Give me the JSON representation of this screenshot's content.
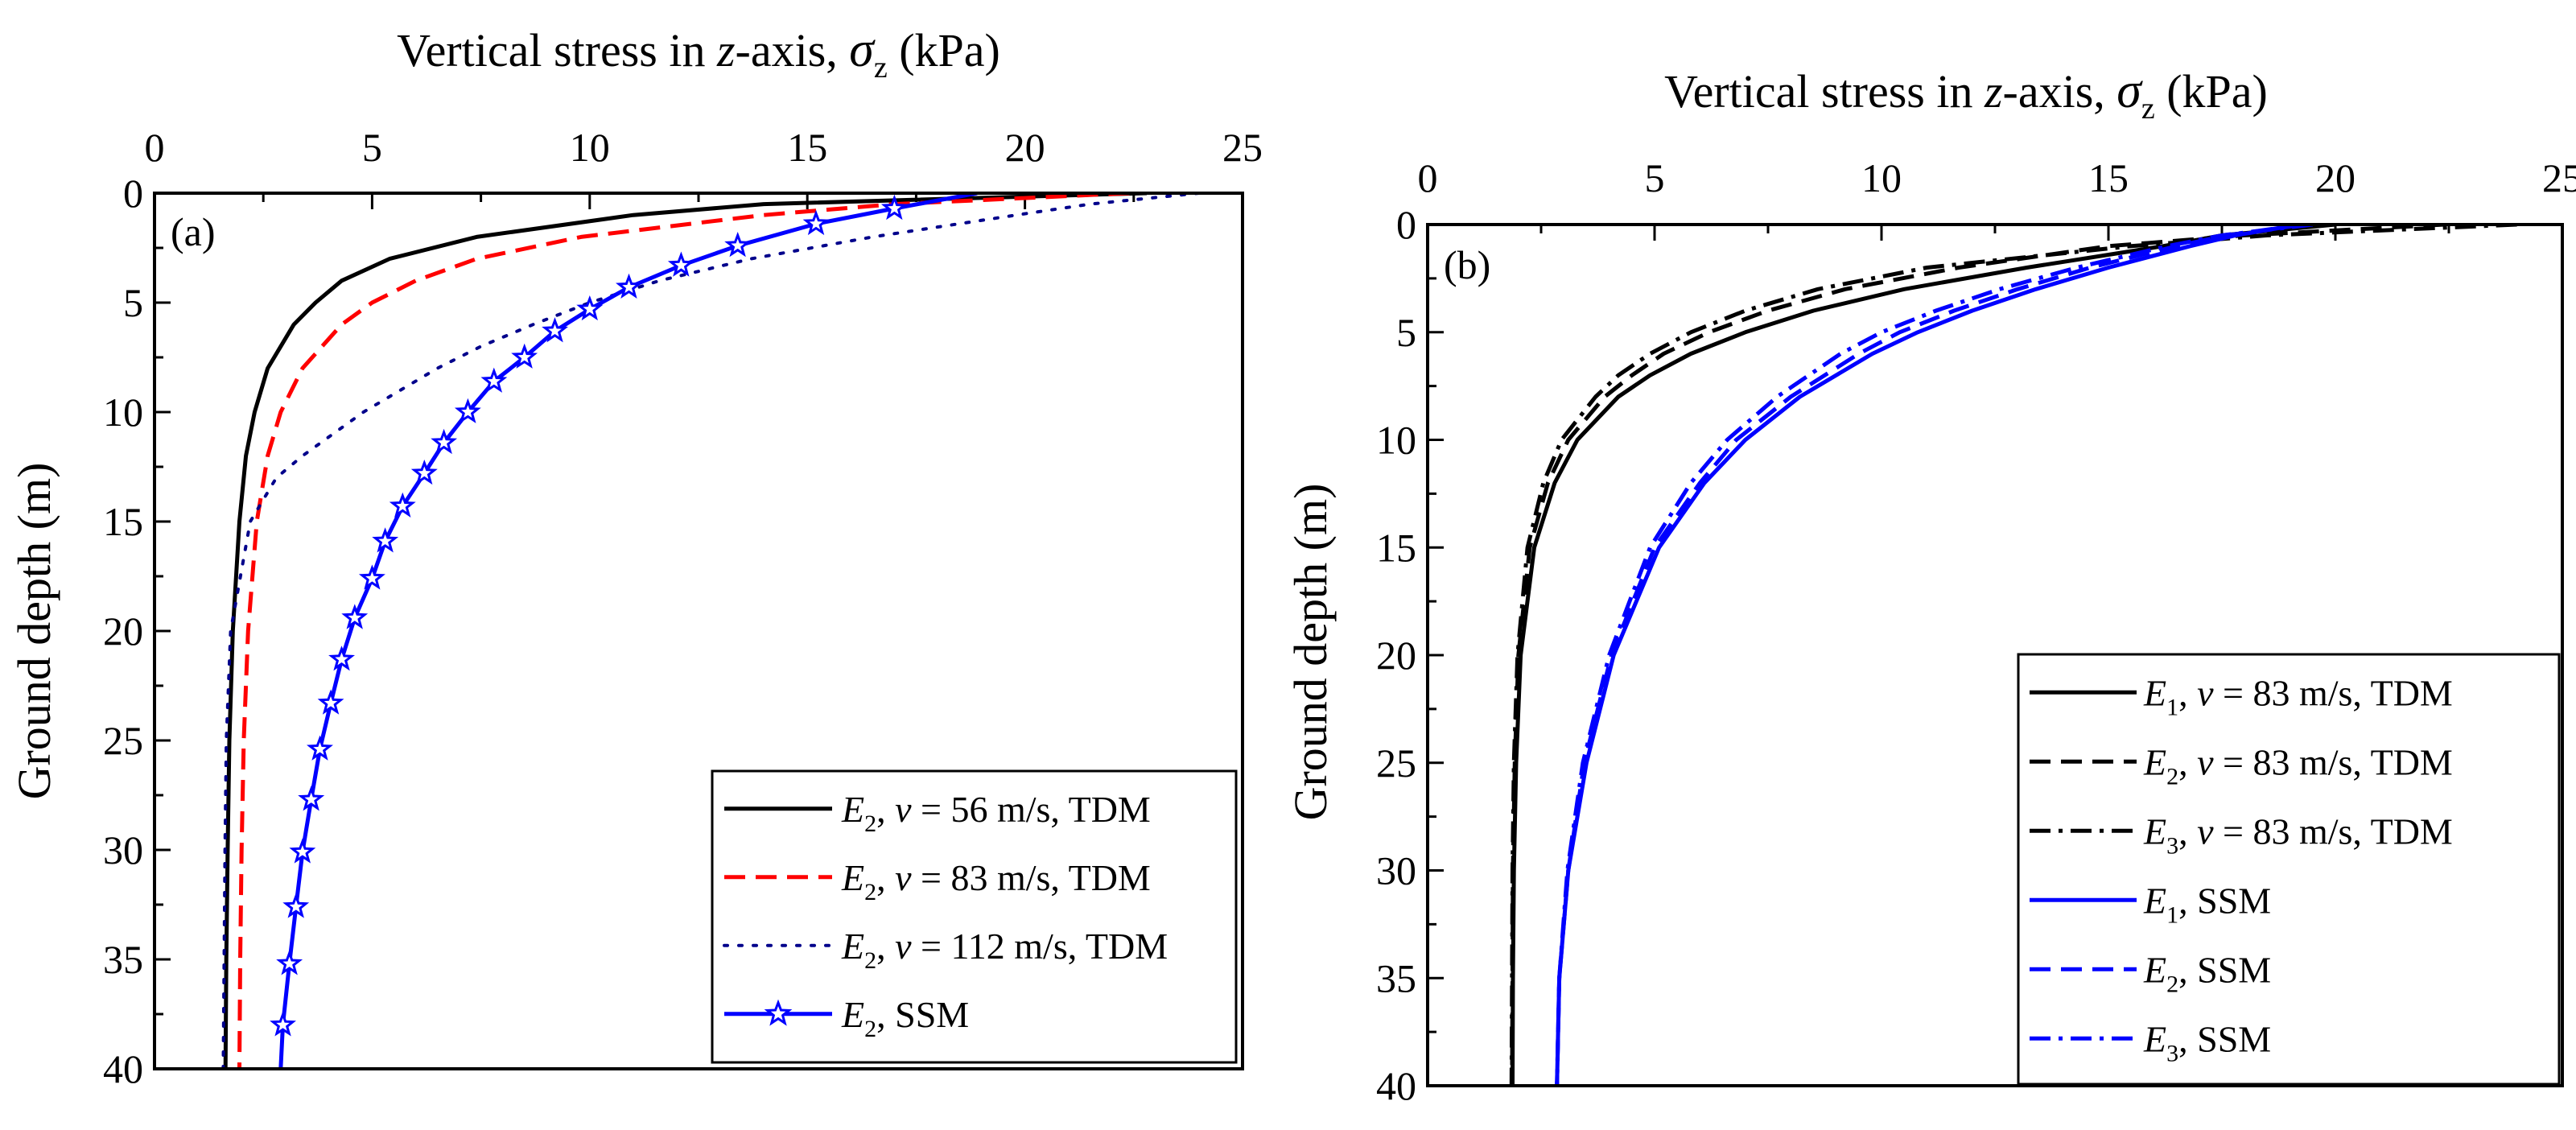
{
  "chart_data": [
    {
      "id": "a",
      "type": "line",
      "panel_label": "(a)",
      "title": {
        "prefix": "Vertical stress in ",
        "var": "z",
        "mid": "-axis, ",
        "sym": "σ",
        "sub": "z",
        "unit": " (kPa)"
      },
      "xlabel": "Vertical stress in z-axis, σz (kPa)",
      "ylabel": "Ground depth (m)",
      "xlim": [
        0,
        25
      ],
      "ylim": [
        0,
        40
      ],
      "xticks": [
        0,
        5,
        10,
        15,
        20,
        25
      ],
      "yticks": [
        0,
        5,
        10,
        15,
        20,
        25,
        30,
        35,
        40
      ],
      "xtick_labels": [
        "0",
        "5",
        "10",
        "15",
        "20",
        "25"
      ],
      "ytick_labels": [
        "0",
        "5",
        "10",
        "15",
        "20",
        "25",
        "30",
        "35",
        "40"
      ],
      "legend_position": "bottom-right",
      "series": [
        {
          "name": "E2, v = 56 m/s, TDM",
          "legend": {
            "E": "E",
            "sub": "2",
            "rest": ", ",
            "v": "v",
            "tail": " = 56 m/s, TDM"
          },
          "color": "#000000",
          "dash": "solid",
          "marker": "none",
          "depth": [
            0,
            0.5,
            1,
            2,
            3,
            4,
            5,
            6,
            8,
            10,
            12,
            15,
            20,
            25,
            30,
            35,
            40
          ],
          "stress": [
            22.8,
            14.0,
            11.0,
            7.4,
            5.4,
            4.3,
            3.7,
            3.2,
            2.6,
            2.3,
            2.1,
            1.95,
            1.8,
            1.72,
            1.68,
            1.65,
            1.63
          ]
        },
        {
          "name": "E2, v = 83 m/s, TDM",
          "legend": {
            "E": "E",
            "sub": "2",
            "rest": ", ",
            "v": "v",
            "tail": " = 83 m/s, TDM"
          },
          "color": "#ff0000",
          "dash": "dash",
          "marker": "none",
          "depth": [
            0,
            0.5,
            1,
            2,
            3,
            4,
            5,
            6,
            8,
            10,
            12,
            15,
            20,
            25,
            30,
            35,
            40
          ],
          "stress": [
            22.4,
            17.0,
            14.0,
            9.8,
            7.4,
            6.0,
            5.0,
            4.3,
            3.4,
            2.9,
            2.6,
            2.35,
            2.15,
            2.05,
            2.0,
            1.97,
            1.95
          ]
        },
        {
          "name": "E2, v = 112 m/s, TDM",
          "legend": {
            "E": "E",
            "sub": "2",
            "rest": ", ",
            "v": "v",
            "tail": " = 112 m/s, TDM"
          },
          "color": "#00008b",
          "dash": "dot",
          "marker": "none",
          "depth": [
            0,
            0.5,
            1,
            2,
            3,
            4,
            5,
            6,
            7,
            8,
            10,
            12,
            13,
            15,
            20,
            25,
            30,
            35,
            40
          ],
          "stress": [
            24.0,
            21.5,
            19.8,
            16.5,
            13.7,
            11.6,
            10.0,
            8.7,
            7.5,
            6.5,
            4.8,
            3.4,
            2.8,
            2.2,
            1.75,
            1.65,
            1.62,
            1.6,
            1.58
          ]
        },
        {
          "name": "E2, SSM",
          "legend": {
            "E": "E",
            "sub": "2",
            "rest": ", SSM",
            "v": "",
            "tail": ""
          },
          "color": "#0000ff",
          "dash": "solid",
          "marker": "star",
          "depth": [
            0,
            0.7,
            1.4,
            2.4,
            3.3,
            4.3,
            5.3,
            6.3,
            7.5,
            8.6,
            10,
            11.4,
            12.8,
            14.3,
            15.9,
            17.6,
            19.4,
            21.3,
            23.3,
            25.4,
            27.7,
            30.1,
            32.6,
            35.2,
            38.0,
            40
          ],
          "stress": [
            18.9,
            17.0,
            15.2,
            13.4,
            12.1,
            10.9,
            10.0,
            9.2,
            8.5,
            7.8,
            7.2,
            6.65,
            6.2,
            5.7,
            5.3,
            5.0,
            4.6,
            4.3,
            4.05,
            3.8,
            3.6,
            3.4,
            3.25,
            3.1,
            2.95,
            2.9
          ]
        }
      ]
    },
    {
      "id": "b",
      "type": "line",
      "panel_label": "(b)",
      "title": {
        "prefix": "Vertical stress in ",
        "var": "z",
        "mid": "-axis, ",
        "sym": "σ",
        "sub": "z",
        "unit": " (kPa)"
      },
      "xlabel": "Vertical stress in z-axis, σz (kPa)",
      "ylabel": "Ground depth (m)",
      "xlim": [
        0,
        25
      ],
      "ylim": [
        0,
        40
      ],
      "xticks": [
        0,
        5,
        10,
        15,
        20,
        25
      ],
      "yticks": [
        0,
        5,
        10,
        15,
        20,
        25,
        30,
        35,
        40
      ],
      "xtick_labels": [
        "0",
        "5",
        "10",
        "15",
        "20",
        "25"
      ],
      "ytick_labels": [
        "0",
        "5",
        "10",
        "15",
        "20",
        "25",
        "30",
        "35",
        "40"
      ],
      "legend_position": "bottom-right",
      "series": [
        {
          "name": "E1, v = 83 m/s, TDM",
          "legend": {
            "E": "E",
            "sub": "1",
            "rest": ", ",
            "v": "v",
            "tail": " = 83 m/s, TDM"
          },
          "color": "#000000",
          "dash": "solid",
          "marker": "none",
          "depth": [
            0,
            0.5,
            1,
            2,
            3,
            4,
            5,
            6,
            7,
            8,
            10,
            12,
            15,
            20,
            25,
            30,
            35,
            40
          ],
          "stress": [
            20.0,
            17.5,
            16.2,
            13.2,
            10.5,
            8.5,
            7.0,
            5.8,
            4.9,
            4.2,
            3.3,
            2.8,
            2.35,
            2.05,
            1.95,
            1.9,
            1.88,
            1.87
          ]
        },
        {
          "name": "E2, v = 83 m/s, TDM",
          "legend": {
            "E": "E",
            "sub": "2",
            "rest": ", ",
            "v": "v",
            "tail": " = 83 m/s, TDM"
          },
          "color": "#000000",
          "dash": "dash",
          "marker": "none",
          "depth": [
            0,
            0.5,
            1,
            2,
            3,
            4,
            5,
            6,
            7,
            8,
            10,
            12,
            15,
            20,
            25,
            30,
            35,
            40
          ],
          "stress": [
            22.4,
            18.0,
            15.0,
            11.7,
            9.2,
            7.5,
            6.2,
            5.2,
            4.5,
            3.9,
            3.1,
            2.65,
            2.25,
            2.0,
            1.92,
            1.88,
            1.87,
            1.86
          ]
        },
        {
          "name": "E3, v = 83 m/s, TDM",
          "legend": {
            "E": "E",
            "sub": "3",
            "rest": ", ",
            "v": "v",
            "tail": " = 83 m/s, TDM"
          },
          "color": "#000000",
          "dash": "dashdot",
          "marker": "none",
          "depth": [
            0,
            0.5,
            1,
            2,
            3,
            4,
            5,
            6,
            7,
            8,
            10,
            12,
            15,
            20,
            25,
            30,
            35,
            40
          ],
          "stress": [
            24.0,
            18.5,
            15.5,
            11.0,
            8.6,
            7.0,
            5.8,
            4.9,
            4.2,
            3.7,
            2.95,
            2.55,
            2.2,
            1.98,
            1.9,
            1.87,
            1.86,
            1.85
          ]
        },
        {
          "name": "E1, SSM",
          "legend": {
            "E": "E",
            "sub": "1",
            "rest": ", SSM",
            "v": "",
            "tail": ""
          },
          "color": "#0000ff",
          "dash": "solid",
          "marker": "none",
          "depth": [
            0,
            0.5,
            1,
            2,
            3,
            4,
            5,
            6,
            8,
            10,
            12,
            15,
            20,
            25,
            30,
            35,
            40
          ],
          "stress": [
            19.2,
            17.8,
            16.8,
            15.0,
            13.4,
            12.0,
            10.8,
            9.8,
            8.2,
            7.0,
            6.1,
            5.1,
            4.1,
            3.5,
            3.1,
            2.9,
            2.85
          ]
        },
        {
          "name": "E2, SSM",
          "legend": {
            "E": "E",
            "sub": "2",
            "rest": ", SSM",
            "v": "",
            "tail": ""
          },
          "color": "#0000ff",
          "dash": "dash",
          "marker": "none",
          "depth": [
            0,
            0.5,
            1,
            2,
            3,
            4,
            5,
            6,
            8,
            10,
            12,
            15,
            20,
            25,
            30,
            35,
            40
          ],
          "stress": [
            19.3,
            17.6,
            16.5,
            14.6,
            13.0,
            11.6,
            10.4,
            9.5,
            8.0,
            6.8,
            6.0,
            5.0,
            4.05,
            3.45,
            3.1,
            2.9,
            2.85
          ]
        },
        {
          "name": "E3, SSM",
          "legend": {
            "E": "E",
            "sub": "3",
            "rest": ", SSM",
            "v": "",
            "tail": ""
          },
          "color": "#0000ff",
          "dash": "dashdot",
          "marker": "none",
          "depth": [
            0,
            0.5,
            1,
            2,
            3,
            4,
            5,
            6,
            8,
            10,
            12,
            15,
            20,
            25,
            30,
            35,
            40
          ],
          "stress": [
            19.5,
            17.5,
            16.3,
            14.3,
            12.6,
            11.2,
            10.0,
            9.1,
            7.7,
            6.6,
            5.8,
            4.9,
            4.0,
            3.42,
            3.08,
            2.9,
            2.85
          ]
        }
      ]
    }
  ]
}
